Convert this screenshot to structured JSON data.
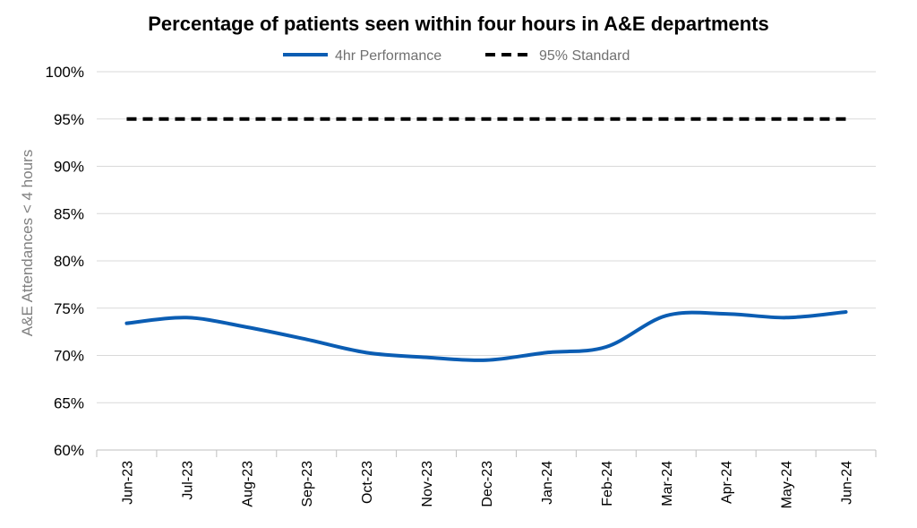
{
  "chart_data": {
    "type": "line",
    "title": "Percentage of patients seen within four hours in A&E departments",
    "xlabel": "",
    "ylabel": "A&E Attendances < 4 hours",
    "categories": [
      "Jun-23",
      "Jul-23",
      "Aug-23",
      "Sep-23",
      "Oct-23",
      "Nov-23",
      "Dec-23",
      "Jan-24",
      "Feb-24",
      "Mar-24",
      "Apr-24",
      "May-24",
      "Jun-24"
    ],
    "ylim": [
      60,
      100
    ],
    "yticks": [
      "60%",
      "65%",
      "70%",
      "75%",
      "80%",
      "85%",
      "90%",
      "95%",
      "100%"
    ],
    "grid": true,
    "legend_position": "top",
    "series": [
      {
        "name": "4hr Performance",
        "values": [
          73.4,
          74.0,
          73.0,
          71.7,
          70.3,
          69.8,
          69.5,
          70.3,
          70.9,
          74.2,
          74.4,
          74.0,
          74.6
        ],
        "color": "#0B5DB3",
        "style": "solid"
      },
      {
        "name": "95% Standard",
        "values": [
          95,
          95,
          95,
          95,
          95,
          95,
          95,
          95,
          95,
          95,
          95,
          95,
          95
        ],
        "color": "#000000",
        "style": "dashed"
      }
    ]
  }
}
